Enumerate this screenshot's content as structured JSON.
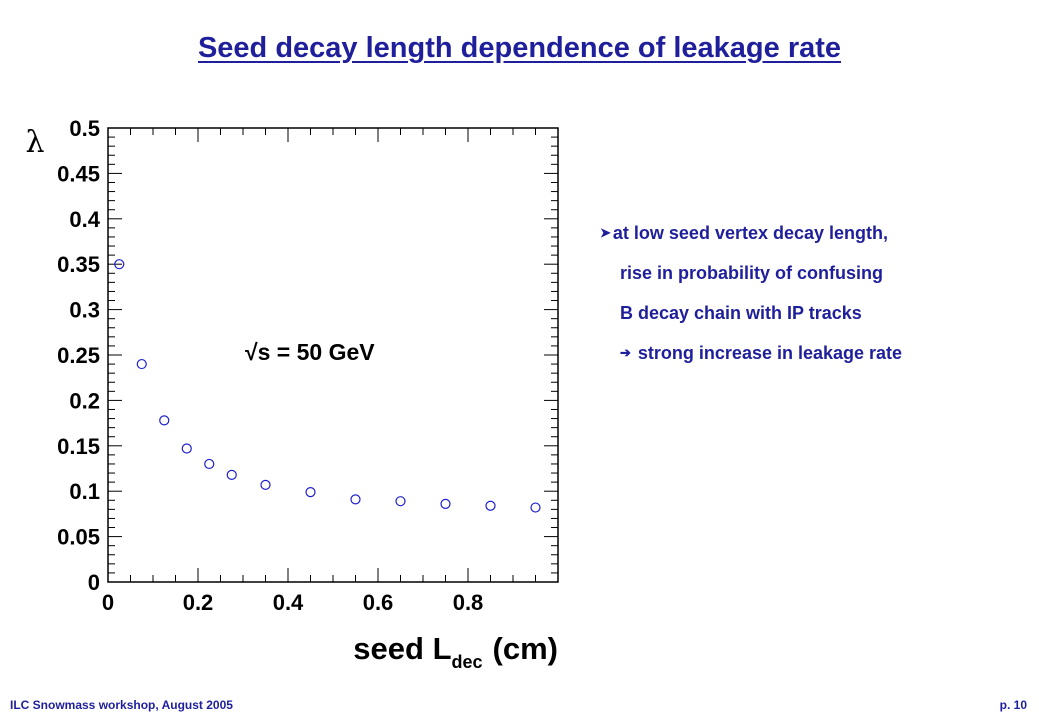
{
  "slide": {
    "title": "Seed decay length dependence of leakage rate",
    "footer_left": "ILC Snowmass workshop, August 2005",
    "footer_right": "p. 10"
  },
  "bullets": {
    "line1": "at low seed vertex decay length,",
    "line2": "rise in probability of confusing",
    "line3": "B decay chain with IP tracks",
    "line4": "strong increase in leakage rate",
    "arrow_color": "#1f1f9c"
  },
  "chart_data": {
    "type": "scatter",
    "ylabel": "λ",
    "xlabel": "seed L",
    "xlabel_sub": "dec",
    "xlabel_unit": "(cm)",
    "annotation": "√s = 50 GeV",
    "xlim": [
      0,
      1.0
    ],
    "ylim": [
      0,
      0.5
    ],
    "x_ticks": [
      "0",
      "0.2",
      "0.4",
      "0.6",
      "0.8"
    ],
    "y_ticks": [
      "0",
      "0.05",
      "0.1",
      "0.15",
      "0.2",
      "0.25",
      "0.3",
      "0.35",
      "0.4",
      "0.45",
      "0.5"
    ],
    "marker_color": "#1f1fd0",
    "series": [
      {
        "x": [
          0.025,
          0.075,
          0.125,
          0.175,
          0.225,
          0.275,
          0.35,
          0.45,
          0.55,
          0.65,
          0.75,
          0.85,
          0.95
        ],
        "y": [
          0.35,
          0.24,
          0.178,
          0.147,
          0.13,
          0.118,
          0.107,
          0.099,
          0.091,
          0.089,
          0.086,
          0.084,
          0.082
        ]
      }
    ]
  }
}
